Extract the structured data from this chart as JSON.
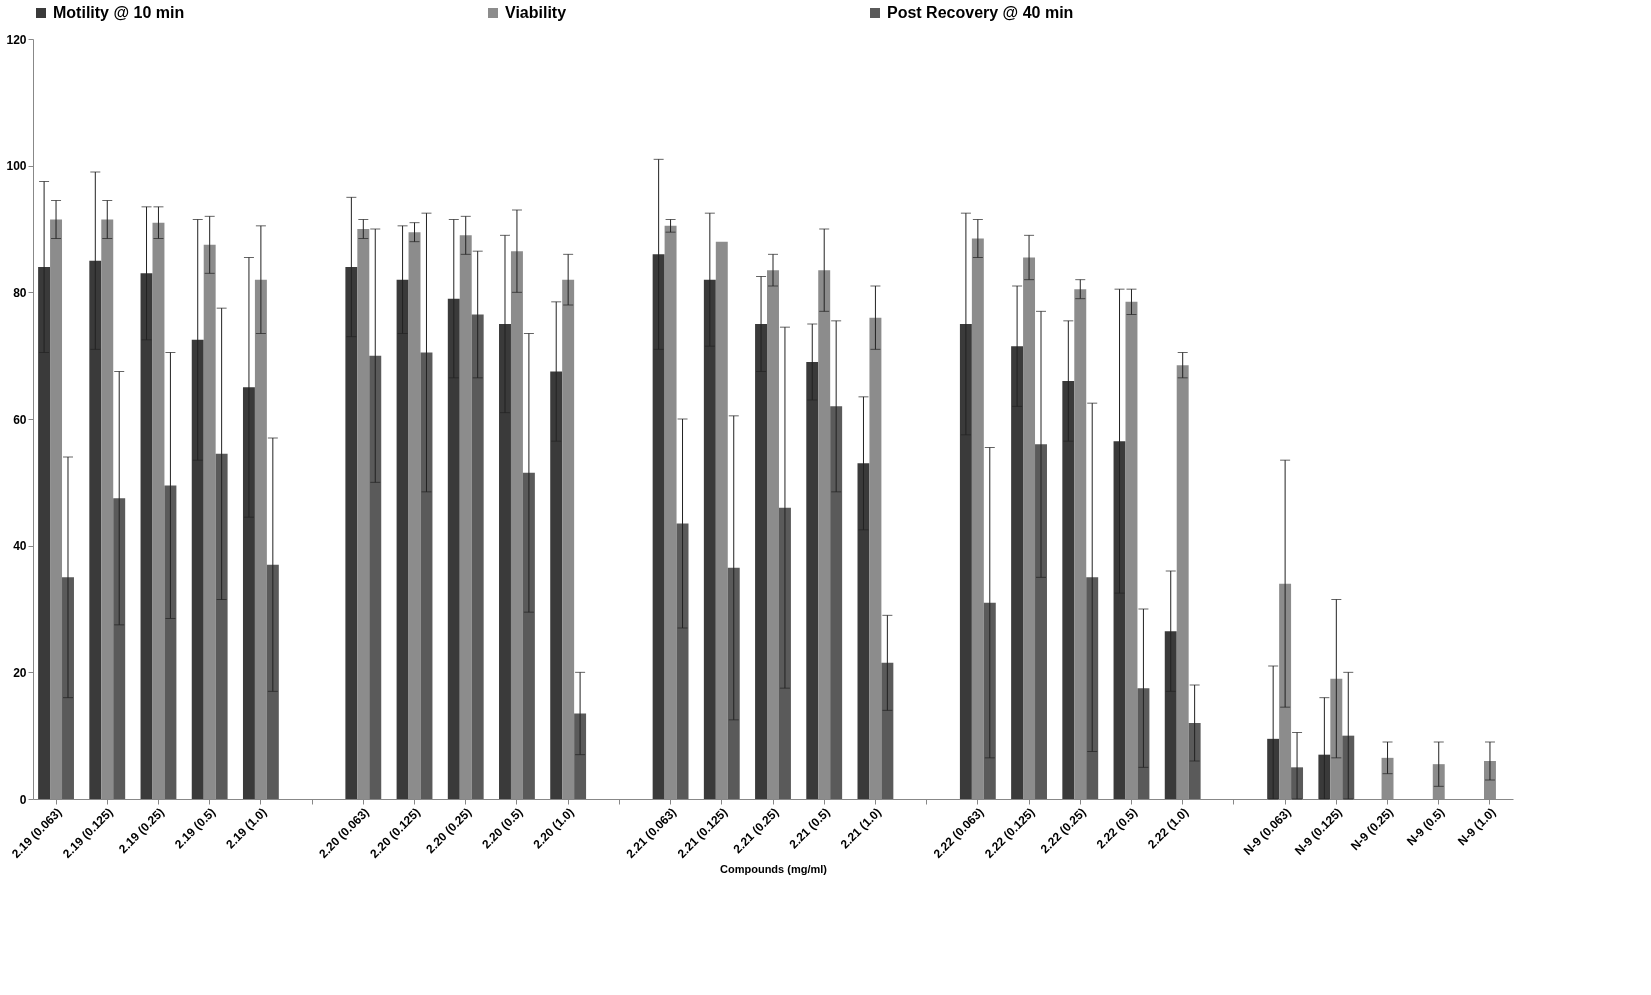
{
  "chart_data": {
    "type": "bar",
    "xlabel": "Compounds (mg/ml)",
    "categories": [
      "2.19 (0.063)",
      "2.19 (0.125)",
      "2.19 (0.25)",
      "2.19 (0.5)",
      "2.19 (1.0)",
      null,
      "2.20 (0.063)",
      "2.20 (0.125)",
      "2.20 (0.25)",
      "2.20 (0.5)",
      "2.20 (1.0)",
      null,
      "2.21 (0.063)",
      "2.21 (0.125)",
      "2.21 (0.25)",
      "2.21 (0.5)",
      "2.21 (1.0)",
      null,
      "2.22 (0.063)",
      "2.22 (0.125)",
      "2.22 (0.25)",
      "2.22 (0.5)",
      "2.22 (1.0)",
      null,
      "N-9 (0.063)",
      "N-9 (0.125)",
      "N-9 (0.25)",
      "N-9 (0.5)",
      "N-9 (1.0)"
    ],
    "series": [
      {
        "name": "Motility @ 10 min",
        "color": "#3a3a3a",
        "values": [
          84,
          85,
          83,
          72.5,
          65,
          null,
          84,
          82,
          79,
          75,
          67.5,
          null,
          86,
          82,
          75,
          69,
          53,
          null,
          75,
          71.5,
          66,
          56.5,
          26.5,
          null,
          9.5,
          7,
          null,
          null,
          null
        ],
        "errors": [
          13.5,
          14,
          10.5,
          19,
          20.5,
          null,
          11,
          8.5,
          12.5,
          14,
          11,
          null,
          15,
          10.5,
          7.5,
          6,
          10.5,
          null,
          17.5,
          9.5,
          9.5,
          24,
          9.5,
          null,
          [
            0,
            21
          ],
          [
            0,
            16
          ],
          null,
          null,
          null
        ]
      },
      {
        "name": "Viability",
        "color": "#8c8c8c",
        "values": [
          91.5,
          91.5,
          91,
          87.5,
          82,
          null,
          90,
          89.5,
          89,
          86.5,
          82,
          null,
          90.5,
          88,
          83.5,
          83.5,
          76,
          null,
          88.5,
          85.5,
          80.5,
          78.5,
          68.5,
          null,
          34,
          19,
          6.5,
          5.5,
          6
        ],
        "errors": [
          3,
          3,
          2.5,
          4.5,
          8.5,
          null,
          1.5,
          1.5,
          3,
          6.5,
          4,
          null,
          1,
          null,
          2.5,
          6.5,
          5,
          null,
          3,
          3.5,
          1.5,
          2,
          2,
          null,
          19.5,
          12.5,
          2.5,
          3.5,
          3
        ]
      },
      {
        "name": "Post Recovery @ 40 min",
        "color": "#5a5a5a",
        "values": [
          35,
          47.5,
          49.5,
          54.5,
          37,
          null,
          70,
          70.5,
          76.5,
          51.5,
          13.5,
          null,
          43.5,
          36.5,
          46,
          62,
          21.5,
          null,
          31,
          56,
          35,
          17.5,
          12,
          null,
          5,
          10,
          null,
          null,
          null
        ],
        "errors": [
          19,
          20,
          21,
          23,
          20,
          null,
          20,
          22,
          10,
          22,
          6.5,
          null,
          16.5,
          24,
          28.5,
          13.5,
          7.5,
          null,
          24.5,
          21,
          27.5,
          12.5,
          6,
          null,
          [
            0,
            10.5
          ],
          10,
          null,
          null,
          null
        ]
      }
    ],
    "ylim": [
      0,
      120
    ],
    "yticks": [
      0,
      20,
      40,
      60,
      80,
      100,
      120
    ],
    "grid": false,
    "legend": "top"
  }
}
